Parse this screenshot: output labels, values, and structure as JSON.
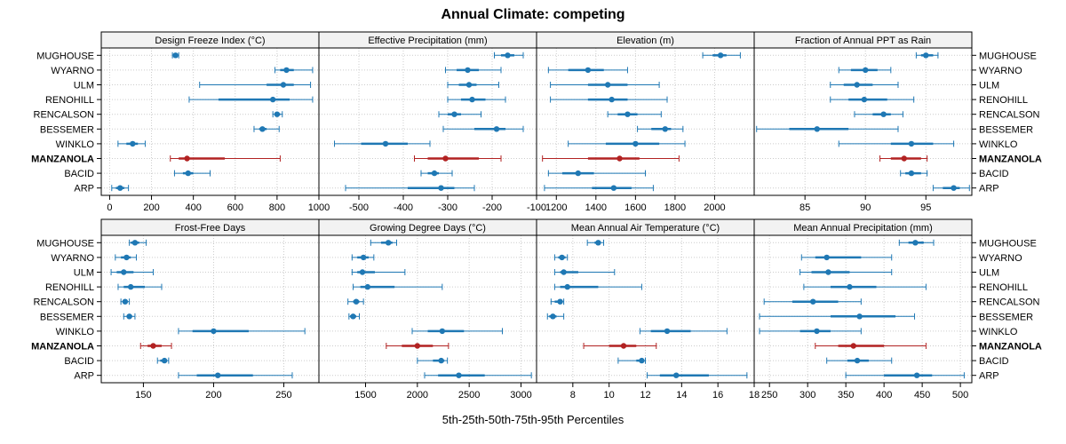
{
  "chart_data": {
    "type": "percentile-interval",
    "title": "Annual Climate: competing",
    "xlabel": "5th-25th-50th-75th-95th Percentiles",
    "rows": [
      "MUGHOUSE",
      "WYARNO",
      "ULM",
      "RENOHILL",
      "RENCALSON",
      "BESSEMER",
      "WINKLO",
      "MANZANOLA",
      "BACID",
      "ARP"
    ],
    "highlight_row": "MANZANOLA",
    "colors": {
      "normal": "#1f78b4",
      "highlight": "#b22222",
      "strip_bg": "#f2f2f2",
      "grid": "#cccccc"
    },
    "panels": [
      {
        "title": "Design Freeze Index (°C)",
        "xlim": [
          -40,
          1000
        ],
        "ticks": [
          0,
          200,
          400,
          600,
          800,
          1000
        ],
        "tick_labels": [
          "0",
          "200",
          "400",
          "600",
          "800",
          "1000"
        ],
        "series": [
          [
            300,
            305,
            315,
            325,
            330
          ],
          [
            790,
            815,
            845,
            880,
            970
          ],
          [
            430,
            750,
            830,
            880,
            960
          ],
          [
            380,
            520,
            780,
            860,
            970
          ],
          [
            780,
            790,
            800,
            815,
            825
          ],
          [
            690,
            715,
            730,
            750,
            810
          ],
          [
            40,
            80,
            110,
            135,
            170
          ],
          [
            290,
            330,
            370,
            550,
            815
          ],
          [
            310,
            350,
            375,
            400,
            480
          ],
          [
            10,
            30,
            50,
            70,
            90
          ]
        ]
      },
      {
        "title": "Effective Precipitation (mm)",
        "xlim": [
          -590,
          -100
        ],
        "ticks": [
          -500,
          -400,
          -300,
          -200,
          -100
        ],
        "tick_labels": [
          "-500",
          "-400",
          "-300",
          "-200",
          "-100"
        ],
        "series": [
          [
            -195,
            -180,
            -165,
            -150,
            -130
          ],
          [
            -305,
            -280,
            -255,
            -230,
            -180
          ],
          [
            -300,
            -275,
            -252,
            -235,
            -185
          ],
          [
            -300,
            -270,
            -245,
            -215,
            -170
          ],
          [
            -320,
            -300,
            -285,
            -270,
            -225
          ],
          [
            -310,
            -240,
            -190,
            -170,
            -130
          ],
          [
            -555,
            -495,
            -440,
            -390,
            -340
          ],
          [
            -375,
            -345,
            -305,
            -230,
            -180
          ],
          [
            -360,
            -345,
            -330,
            -320,
            -290
          ],
          [
            -530,
            -390,
            -315,
            -285,
            -240
          ]
        ]
      },
      {
        "title": "Elevation (m)",
        "xlim": [
          1100,
          2200
        ],
        "ticks": [
          1200,
          1400,
          1600,
          1800,
          2000
        ],
        "tick_labels": [
          "1200",
          "1400",
          "1600",
          "1800",
          "2000"
        ],
        "series": [
          [
            1940,
            1990,
            2030,
            2060,
            2130
          ],
          [
            1160,
            1260,
            1360,
            1440,
            1560
          ],
          [
            1170,
            1360,
            1460,
            1560,
            1720
          ],
          [
            1170,
            1360,
            1480,
            1560,
            1760
          ],
          [
            1460,
            1510,
            1560,
            1610,
            1730
          ],
          [
            1610,
            1680,
            1750,
            1780,
            1840
          ],
          [
            1260,
            1450,
            1600,
            1720,
            1850
          ],
          [
            1130,
            1360,
            1520,
            1620,
            1820
          ],
          [
            1160,
            1230,
            1310,
            1390,
            1650
          ],
          [
            1140,
            1380,
            1490,
            1580,
            1690
          ]
        ]
      },
      {
        "title": "Fraction of Annual PPT as Rain",
        "xlim": [
          80.8,
          98.8
        ],
        "ticks": [
          85,
          90,
          95
        ],
        "tick_labels": [
          "85",
          "90",
          "95"
        ],
        "series": [
          [
            94.2,
            94.6,
            95.0,
            95.6,
            96.0
          ],
          [
            87.8,
            88.8,
            90.0,
            91.0,
            92.1
          ],
          [
            87.1,
            88.2,
            89.3,
            90.6,
            92.7
          ],
          [
            87.1,
            88.6,
            89.9,
            91.8,
            94.0
          ],
          [
            89.1,
            90.6,
            91.5,
            92.1,
            93.1
          ],
          [
            81.0,
            83.7,
            86.0,
            88.6,
            92.7
          ],
          [
            87.8,
            92.1,
            93.8,
            95.6,
            97.3
          ],
          [
            91.2,
            92.1,
            93.2,
            94.6,
            95.1
          ],
          [
            92.9,
            93.3,
            93.8,
            94.6,
            95.1
          ],
          [
            95.6,
            96.4,
            97.3,
            97.8,
            98.6
          ]
        ]
      },
      {
        "title": "Frost-Free Days",
        "xlim": [
          120,
          275
        ],
        "ticks": [
          150,
          200,
          250
        ],
        "tick_labels": [
          "150",
          "200",
          "250"
        ],
        "series": [
          [
            140,
            141,
            144,
            147,
            152
          ],
          [
            130,
            134,
            138,
            141,
            145
          ],
          [
            127,
            131,
            136,
            143,
            157
          ],
          [
            132,
            136,
            141,
            151,
            163
          ],
          [
            134,
            136,
            137,
            138,
            140
          ],
          [
            136,
            138,
            140,
            142,
            144
          ],
          [
            175,
            185,
            200,
            225,
            265
          ],
          [
            148,
            153,
            157,
            163,
            170
          ],
          [
            160,
            162,
            165,
            166,
            168
          ],
          [
            175,
            188,
            203,
            228,
            256
          ]
        ]
      },
      {
        "title": "Growing Degree Days (°C)",
        "xlim": [
          1050,
          3150
        ],
        "ticks": [
          1500,
          2000,
          2500,
          3000
        ],
        "tick_labels": [
          "1500",
          "2000",
          "2500",
          "3000"
        ],
        "series": [
          [
            1550,
            1650,
            1720,
            1760,
            1800
          ],
          [
            1370,
            1420,
            1480,
            1530,
            1580
          ],
          [
            1370,
            1420,
            1470,
            1590,
            1880
          ],
          [
            1380,
            1450,
            1520,
            1780,
            2240
          ],
          [
            1330,
            1380,
            1410,
            1440,
            1480
          ],
          [
            1340,
            1350,
            1380,
            1410,
            1440
          ],
          [
            1950,
            2100,
            2240,
            2450,
            2820
          ],
          [
            1700,
            1850,
            2000,
            2150,
            2300
          ],
          [
            2000,
            2150,
            2230,
            2260,
            2290
          ],
          [
            2070,
            2200,
            2400,
            2650,
            3100
          ]
        ]
      },
      {
        "title": "Mean Annual Air Temperature (°C)",
        "xlim": [
          6,
          18
        ],
        "ticks": [
          8,
          10,
          12,
          14,
          16,
          18
        ],
        "tick_labels": [
          "8",
          "10",
          "12",
          "14",
          "16",
          "18"
        ],
        "series": [
          [
            8.8,
            9.2,
            9.4,
            9.5,
            9.7
          ],
          [
            7.0,
            7.2,
            7.4,
            7.6,
            7.7
          ],
          [
            7.0,
            7.3,
            7.5,
            8.3,
            10.3
          ],
          [
            7.0,
            7.3,
            7.7,
            9.4,
            11.8
          ],
          [
            6.8,
            7.0,
            7.3,
            7.4,
            7.5
          ],
          [
            6.6,
            6.7,
            6.9,
            7.1,
            7.5
          ],
          [
            11.7,
            12.3,
            13.2,
            14.5,
            16.5
          ],
          [
            8.6,
            10.0,
            10.8,
            11.5,
            12.6
          ],
          [
            10.5,
            11.5,
            11.8,
            11.9,
            12.0
          ],
          [
            12.1,
            12.8,
            13.7,
            15.5,
            17.6
          ]
        ]
      },
      {
        "title": "Mean Annual Precipitation (mm)",
        "xlim": [
          230,
          515
        ],
        "ticks": [
          250,
          300,
          350,
          400,
          450,
          500
        ],
        "tick_labels": [
          "250",
          "300",
          "350",
          "400",
          "450",
          "500"
        ],
        "series": [
          [
            420,
            432,
            441,
            452,
            465
          ],
          [
            292,
            310,
            325,
            370,
            410
          ],
          [
            290,
            305,
            327,
            355,
            410
          ],
          [
            295,
            330,
            355,
            390,
            455
          ],
          [
            243,
            280,
            307,
            340,
            370
          ],
          [
            237,
            330,
            368,
            415,
            440
          ],
          [
            237,
            290,
            312,
            330,
            370
          ],
          [
            310,
            340,
            360,
            400,
            455
          ],
          [
            325,
            352,
            365,
            380,
            410
          ],
          [
            350,
            400,
            443,
            463,
            505
          ]
        ]
      }
    ]
  }
}
